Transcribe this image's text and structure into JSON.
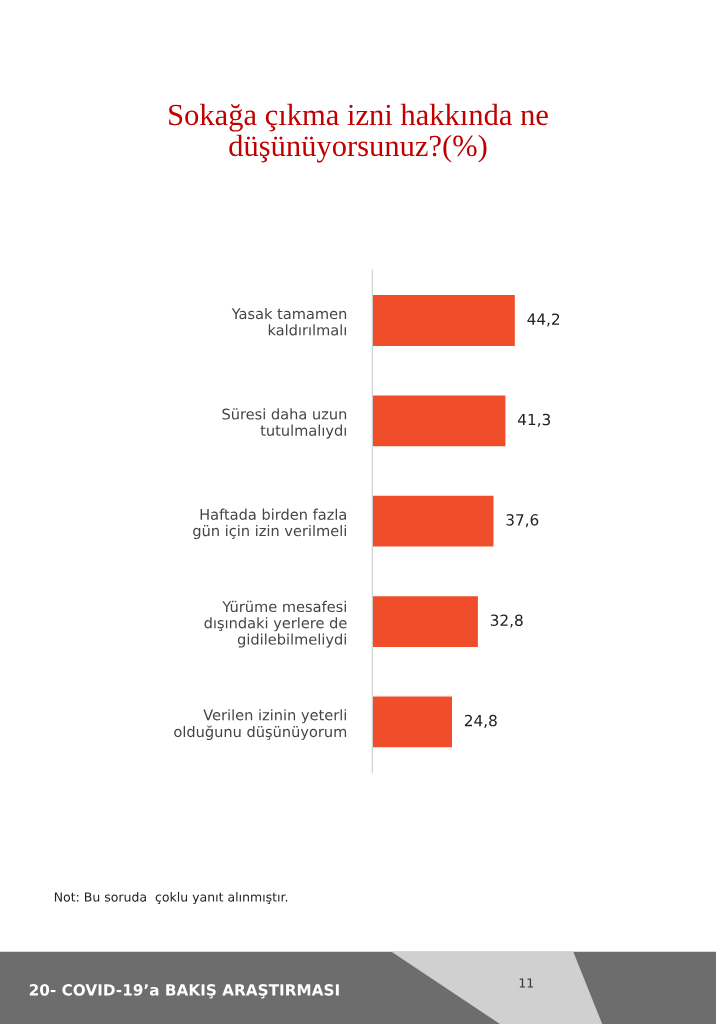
{
  "chart_data": {
    "type": "bar",
    "orientation": "horizontal",
    "title": "Sokağa çıkma izni hakkında ne\ndüşünüyorsunuz?(%)",
    "categories": [
      "Yasak tamamen\nkaldırılmalı",
      "Süresi daha uzun\ntutulmalıydı",
      "Haftada birden fazla\ngün için izin verilmeli",
      "Yürüme mesafesi\ndışındaki yerlere de\ngidilebilmeliydi",
      "Verilen izinin yeterli\nolduğunu düşünüyorum"
    ],
    "values": [
      44.2,
      41.3,
      37.6,
      32.8,
      24.8
    ],
    "value_labels": [
      "44,2",
      "41,3",
      "37,6",
      "32,8",
      "24,8"
    ],
    "color": "#f04e2a",
    "tick_labels": "y",
    "grid": false,
    "legend": false,
    "annotations": [
      "Not: Bu soruda  çoklu yanıt alınmıştır.",
      "20- COVID-19’a BAKIŞ ARAŞTIRMASI",
      "11"
    ]
  }
}
